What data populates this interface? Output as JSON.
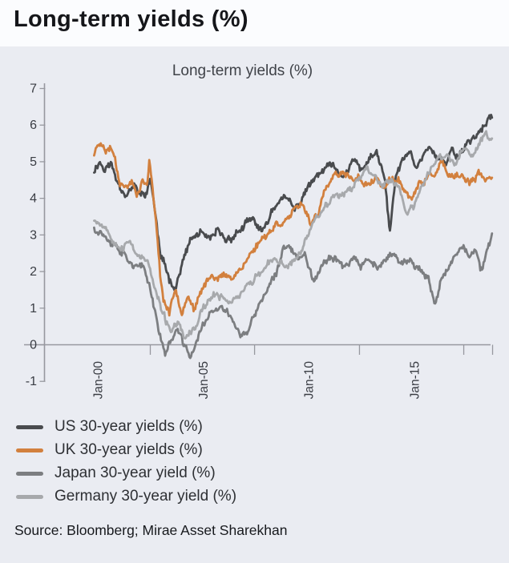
{
  "page": {
    "title": "Long-term yields (%)",
    "source": "Source: Bloomberg; Mirae Asset Sharekhan"
  },
  "chart_data": {
    "type": "line",
    "title": "Long-term yields (%)",
    "grid": false,
    "legend_position": "bottom-left",
    "x_axis": {
      "tick_labels": [
        "Jan-00",
        "Jan-05",
        "Jan-10",
        "Jan-15"
      ],
      "tick_label_years": [
        2000.05,
        2005.1,
        2010.15,
        2015.2
      ],
      "boundary_tick_years": [
        2002.57,
        2007.56,
        2012.58,
        2017.57,
        2018.95
      ],
      "range_years": [
        1999.9,
        2018.99
      ]
    },
    "y_axis": {
      "tick_values": [
        7,
        6,
        5,
        4,
        3,
        2,
        1,
        0,
        -1
      ],
      "range": [
        -1,
        7
      ]
    },
    "colors": {
      "axis": "#97989f",
      "tick_text": "#3a3d44",
      "panel_background": "#eaecf2"
    },
    "series": [
      {
        "name": "US 30-year yields (%)",
        "color": "#494b4e",
        "noise_amplitude": 0.13,
        "points": [
          [
            1999.9,
            4.75
          ],
          [
            2000.15,
            5.05
          ],
          [
            2000.4,
            4.8
          ],
          [
            2000.7,
            4.95
          ],
          [
            2001.0,
            4.45
          ],
          [
            2001.4,
            4.2
          ],
          [
            2001.8,
            4.35
          ],
          [
            2002.1,
            4.05
          ],
          [
            2002.4,
            4.1
          ],
          [
            2002.6,
            4.5
          ],
          [
            2002.75,
            3.9
          ],
          [
            2002.95,
            3.0
          ],
          [
            2003.1,
            2.3
          ],
          [
            2003.5,
            1.8
          ],
          [
            2003.8,
            1.6
          ],
          [
            2004.1,
            2.2
          ],
          [
            2004.5,
            2.8
          ],
          [
            2005.0,
            3.05
          ],
          [
            2005.4,
            2.7
          ],
          [
            2005.8,
            3.0
          ],
          [
            2006.2,
            2.75
          ],
          [
            2006.7,
            3.05
          ],
          [
            2007.0,
            3.2
          ],
          [
            2007.5,
            3.35
          ],
          [
            2008.0,
            3.0
          ],
          [
            2008.4,
            3.6
          ],
          [
            2008.8,
            4.05
          ],
          [
            2009.2,
            3.9
          ],
          [
            2009.5,
            3.6
          ],
          [
            2009.8,
            3.9
          ],
          [
            2010.1,
            4.3
          ],
          [
            2010.5,
            4.5
          ],
          [
            2010.9,
            4.75
          ],
          [
            2011.3,
            4.85
          ],
          [
            2011.6,
            4.5
          ],
          [
            2012.0,
            4.7
          ],
          [
            2012.4,
            5.0
          ],
          [
            2012.7,
            4.6
          ],
          [
            2013.0,
            5.0
          ],
          [
            2013.4,
            5.2
          ],
          [
            2013.8,
            4.5
          ],
          [
            2014.05,
            3.0
          ],
          [
            2014.35,
            4.6
          ],
          [
            2014.7,
            5.0
          ],
          [
            2015.0,
            5.3
          ],
          [
            2015.3,
            4.85
          ],
          [
            2015.7,
            5.25
          ],
          [
            2016.0,
            5.5
          ],
          [
            2016.3,
            5.1
          ],
          [
            2016.7,
            4.9
          ],
          [
            2017.0,
            5.35
          ],
          [
            2017.3,
            5.15
          ],
          [
            2017.7,
            5.5
          ],
          [
            2018.0,
            5.65
          ],
          [
            2018.3,
            5.85
          ],
          [
            2018.6,
            5.95
          ],
          [
            2018.95,
            6.2
          ]
        ]
      },
      {
        "name": "UK 30-year yields (%)",
        "color": "#d2803e",
        "noise_amplitude": 0.11,
        "points": [
          [
            1999.9,
            5.2
          ],
          [
            2000.1,
            5.5
          ],
          [
            2000.25,
            5.65
          ],
          [
            2000.45,
            5.3
          ],
          [
            2000.7,
            5.45
          ],
          [
            2000.9,
            5.15
          ],
          [
            2001.1,
            4.6
          ],
          [
            2001.4,
            4.35
          ],
          [
            2001.7,
            4.5
          ],
          [
            2001.95,
            4.2
          ],
          [
            2002.2,
            4.55
          ],
          [
            2002.45,
            4.4
          ],
          [
            2002.55,
            5.05
          ],
          [
            2002.7,
            4.2
          ],
          [
            2002.9,
            3.2
          ],
          [
            2003.05,
            2.0
          ],
          [
            2003.2,
            1.3
          ],
          [
            2003.5,
            0.9
          ],
          [
            2003.8,
            1.55
          ],
          [
            2004.1,
            1.0
          ],
          [
            2004.4,
            1.5
          ],
          [
            2004.7,
            0.95
          ],
          [
            2005.0,
            1.35
          ],
          [
            2005.4,
            1.8
          ],
          [
            2005.9,
            1.95
          ],
          [
            2006.4,
            1.8
          ],
          [
            2006.9,
            2.1
          ],
          [
            2007.4,
            2.5
          ],
          [
            2007.8,
            2.8
          ],
          [
            2008.2,
            3.05
          ],
          [
            2008.6,
            3.3
          ],
          [
            2009.0,
            3.45
          ],
          [
            2009.4,
            3.6
          ],
          [
            2009.9,
            3.7
          ],
          [
            2010.3,
            3.3
          ],
          [
            2010.7,
            3.75
          ],
          [
            2011.0,
            4.2
          ],
          [
            2011.4,
            4.6
          ],
          [
            2011.8,
            4.55
          ],
          [
            2012.2,
            4.5
          ],
          [
            2012.6,
            4.55
          ],
          [
            2013.0,
            4.35
          ],
          [
            2013.4,
            4.55
          ],
          [
            2013.8,
            4.3
          ],
          [
            2014.2,
            4.5
          ],
          [
            2014.6,
            4.35
          ],
          [
            2015.05,
            3.95
          ],
          [
            2015.4,
            4.25
          ],
          [
            2015.8,
            4.5
          ],
          [
            2016.2,
            4.65
          ],
          [
            2016.5,
            4.95
          ],
          [
            2016.8,
            4.6
          ],
          [
            2017.1,
            4.4
          ],
          [
            2017.5,
            4.55
          ],
          [
            2017.9,
            4.35
          ],
          [
            2018.3,
            4.6
          ],
          [
            2018.6,
            4.4
          ],
          [
            2018.95,
            4.55
          ]
        ]
      },
      {
        "name": "Japan 30-year yield (%)",
        "color": "#7c7e81",
        "noise_amplitude": 0.12,
        "points": [
          [
            1999.9,
            3.2
          ],
          [
            2000.3,
            3.1
          ],
          [
            2000.8,
            2.9
          ],
          [
            2001.3,
            2.6
          ],
          [
            2001.8,
            2.3
          ],
          [
            2002.3,
            2.0
          ],
          [
            2002.55,
            1.6
          ],
          [
            2002.8,
            1.0
          ],
          [
            2003.0,
            0.4
          ],
          [
            2003.3,
            -0.2
          ],
          [
            2003.6,
            0.15
          ],
          [
            2003.9,
            0.4
          ],
          [
            2004.2,
            -0.1
          ],
          [
            2004.5,
            -0.35
          ],
          [
            2004.8,
            0.05
          ],
          [
            2005.1,
            0.5
          ],
          [
            2005.5,
            0.85
          ],
          [
            2006.0,
            0.9
          ],
          [
            2006.5,
            0.75
          ],
          [
            2006.9,
            0.3
          ],
          [
            2007.2,
            0.25
          ],
          [
            2007.5,
            0.65
          ],
          [
            2007.8,
            1.1
          ],
          [
            2008.2,
            1.5
          ],
          [
            2008.6,
            1.8
          ],
          [
            2009.0,
            2.6
          ],
          [
            2009.3,
            2.75
          ],
          [
            2009.6,
            2.4
          ],
          [
            2010.0,
            2.45
          ],
          [
            2010.4,
            1.85
          ],
          [
            2010.8,
            2.2
          ],
          [
            2011.2,
            2.5
          ],
          [
            2011.9,
            2.2
          ],
          [
            2012.3,
            2.35
          ],
          [
            2012.7,
            2.1
          ],
          [
            2013.1,
            2.3
          ],
          [
            2013.5,
            2.15
          ],
          [
            2013.9,
            2.25
          ],
          [
            2014.3,
            2.35
          ],
          [
            2014.7,
            2.2
          ],
          [
            2015.1,
            2.3
          ],
          [
            2015.5,
            2.05
          ],
          [
            2015.9,
            1.7
          ],
          [
            2016.2,
            1.0
          ],
          [
            2016.5,
            1.6
          ],
          [
            2016.9,
            2.1
          ],
          [
            2017.2,
            2.4
          ],
          [
            2017.5,
            2.85
          ],
          [
            2017.8,
            2.5
          ],
          [
            2018.1,
            2.6
          ],
          [
            2018.45,
            2.05
          ],
          [
            2018.7,
            2.5
          ],
          [
            2018.95,
            2.9
          ]
        ]
      },
      {
        "name": "Germany 30-year yield (%)",
        "color": "#a7a9ac",
        "noise_amplitude": 0.11,
        "points": [
          [
            1999.9,
            3.45
          ],
          [
            2000.3,
            3.3
          ],
          [
            2000.8,
            3.0
          ],
          [
            2001.3,
            2.7
          ],
          [
            2001.6,
            2.9
          ],
          [
            2002.0,
            2.5
          ],
          [
            2002.5,
            2.2
          ],
          [
            2002.8,
            1.5
          ],
          [
            2003.1,
            0.95
          ],
          [
            2003.35,
            0.55
          ],
          [
            2003.6,
            0.4
          ],
          [
            2003.9,
            0.55
          ],
          [
            2004.2,
            0.1
          ],
          [
            2004.5,
            0.25
          ],
          [
            2004.8,
            0.45
          ],
          [
            2005.1,
            0.9
          ],
          [
            2005.5,
            1.2
          ],
          [
            2006.0,
            1.3
          ],
          [
            2006.5,
            1.2
          ],
          [
            2007.0,
            1.5
          ],
          [
            2007.5,
            1.8
          ],
          [
            2008.0,
            2.0
          ],
          [
            2008.5,
            2.25
          ],
          [
            2009.0,
            2.1
          ],
          [
            2009.5,
            2.3
          ],
          [
            2009.8,
            2.55
          ],
          [
            2010.2,
            3.1
          ],
          [
            2010.6,
            3.6
          ],
          [
            2011.0,
            3.9
          ],
          [
            2011.4,
            4.05
          ],
          [
            2011.8,
            4.2
          ],
          [
            2012.2,
            4.35
          ],
          [
            2012.6,
            4.55
          ],
          [
            2013.0,
            4.8
          ],
          [
            2013.3,
            4.6
          ],
          [
            2013.7,
            4.4
          ],
          [
            2014.1,
            4.5
          ],
          [
            2014.5,
            4.2
          ],
          [
            2014.85,
            3.65
          ],
          [
            2015.2,
            3.7
          ],
          [
            2015.6,
            4.35
          ],
          [
            2016.0,
            4.75
          ],
          [
            2016.4,
            5.05
          ],
          [
            2016.8,
            5.15
          ],
          [
            2017.2,
            4.95
          ],
          [
            2017.6,
            5.25
          ],
          [
            2018.0,
            5.15
          ],
          [
            2018.35,
            5.5
          ],
          [
            2018.65,
            5.75
          ],
          [
            2018.95,
            5.6
          ]
        ]
      }
    ]
  }
}
